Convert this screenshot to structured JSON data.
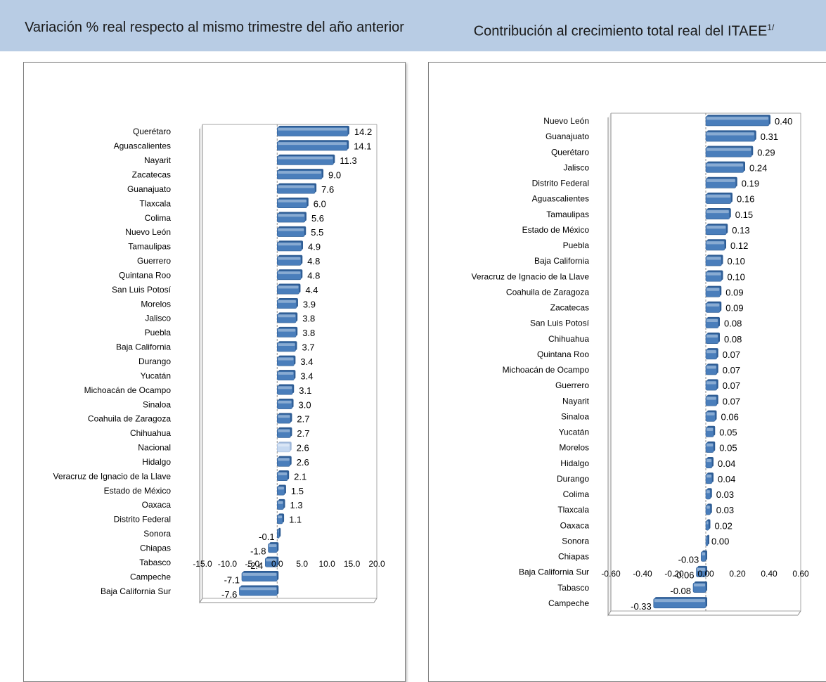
{
  "header": {
    "left_title": "Variación % real respecto al mismo trimestre del año anterior",
    "right_title": "Contribución al crecimiento total real del ITAEE",
    "right_title_sup": "1/"
  },
  "colors": {
    "header_bg": "#b8cce4",
    "bar": "#4a7ebb",
    "bar_highlight": "#c6d9f1"
  },
  "chart_data": [
    {
      "type": "bar",
      "orientation": "horizontal",
      "title": "Variación % real respecto al mismo trimestre del año anterior",
      "xlim": [
        -15,
        20
      ],
      "xticks": [
        "-15.0",
        "-10.0",
        "-5.0",
        "0.0",
        "5.0",
        "10.0",
        "15.0",
        "20.0"
      ],
      "highlight": "Nacional",
      "categories": [
        "Querétaro",
        "Aguascalientes",
        "Nayarit",
        "Zacatecas",
        "Guanajuato",
        "Tlaxcala",
        "Colima",
        "Nuevo León",
        "Tamaulipas",
        "Guerrero",
        "Quintana Roo",
        "San Luis Potosí",
        "Morelos",
        "Jalisco",
        "Puebla",
        "Baja California",
        "Durango",
        "Yucatán",
        "Michoacán de Ocampo",
        "Sinaloa",
        "Coahuila de Zaragoza",
        "Chihuahua",
        "Nacional",
        "Hidalgo",
        "Veracruz de Ignacio de la Llave",
        "Estado de México",
        "Oaxaca",
        "Distrito Federal",
        "Sonora",
        "Chiapas",
        "Tabasco",
        "Campeche",
        "Baja California Sur"
      ],
      "values": [
        14.2,
        14.1,
        11.3,
        9.0,
        7.6,
        6.0,
        5.6,
        5.5,
        4.9,
        4.8,
        4.8,
        4.4,
        3.9,
        3.8,
        3.8,
        3.7,
        3.4,
        3.4,
        3.1,
        3.0,
        2.7,
        2.7,
        2.6,
        2.6,
        2.1,
        1.5,
        1.3,
        1.1,
        -0.1,
        -1.8,
        -2.4,
        -7.1,
        -7.6
      ],
      "value_labels": [
        "14.2",
        "14.1",
        "11.3",
        "9.0",
        "7.6",
        "6.0",
        "5.6",
        "5.5",
        "4.9",
        "4.8",
        "4.8",
        "4.4",
        "3.9",
        "3.8",
        "3.8",
        "3.7",
        "3.4",
        "3.4",
        "3.1",
        "3.0",
        "2.7",
        "2.7",
        "2.6",
        "2.6",
        "2.1",
        "1.5",
        "1.3",
        "1.1",
        "-0.1",
        "-1.8",
        "-2.4",
        "-7.1",
        "-7.6"
      ]
    },
    {
      "type": "bar",
      "orientation": "horizontal",
      "title": "Contribución al crecimiento total real del ITAEE",
      "xlim": [
        -0.6,
        0.6
      ],
      "xticks": [
        "-0.60",
        "-0.40",
        "-0.20",
        "0.00",
        "0.20",
        "0.40",
        "0.60"
      ],
      "categories": [
        "Nuevo León",
        "Guanajuato",
        "Querétaro",
        "Jalisco",
        "Distrito Federal",
        "Aguascalientes",
        "Tamaulipas",
        "Estado de México",
        "Puebla",
        "Baja California",
        "Veracruz de Ignacio de la Llave",
        "Coahuila de Zaragoza",
        "Zacatecas",
        "San Luis Potosí",
        "Chihuahua",
        "Quintana Roo",
        "Michoacán de Ocampo",
        "Guerrero",
        "Nayarit",
        "Sinaloa",
        "Yucatán",
        "Morelos",
        "Hidalgo",
        "Durango",
        "Colima",
        "Tlaxcala",
        "Oaxaca",
        "Sonora",
        "Chiapas",
        "Baja California Sur",
        "Tabasco",
        "Campeche"
      ],
      "values": [
        0.4,
        0.31,
        0.29,
        0.24,
        0.19,
        0.16,
        0.15,
        0.13,
        0.12,
        0.1,
        0.1,
        0.09,
        0.09,
        0.08,
        0.08,
        0.07,
        0.07,
        0.07,
        0.07,
        0.06,
        0.05,
        0.05,
        0.04,
        0.04,
        0.03,
        0.03,
        0.02,
        0.0,
        -0.03,
        -0.06,
        -0.08,
        -0.33
      ],
      "value_labels": [
        "0.40",
        "0.31",
        "0.29",
        "0.24",
        "0.19",
        "0.16",
        "0.15",
        "0.13",
        "0.12",
        "0.10",
        "0.10",
        "0.09",
        "0.09",
        "0.08",
        "0.08",
        "0.07",
        "0.07",
        "0.07",
        "0.07",
        "0.06",
        "0.05",
        "0.05",
        "0.04",
        "0.04",
        "0.03",
        "0.03",
        "0.02",
        "0.00",
        "-0.03",
        "-0.06",
        "-0.08",
        "-0.33"
      ]
    }
  ]
}
